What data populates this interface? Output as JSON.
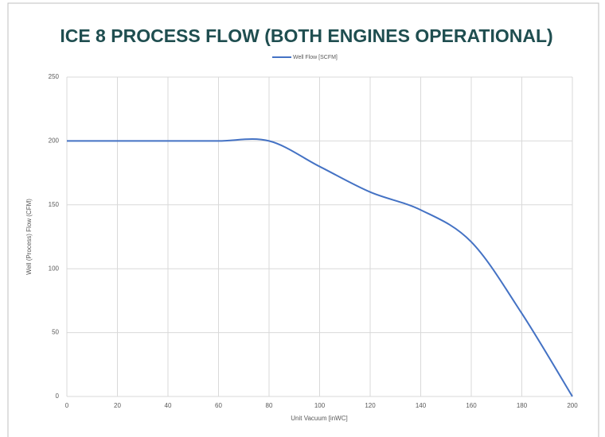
{
  "chart_data": {
    "type": "line",
    "title": "ICE 8 PROCESS FLOW (BOTH ENGINES OPERATIONAL)",
    "x_label": "Unit Vacuum [inWC]",
    "y_label": "Well (Process) Flow (CFM)",
    "x": [
      0,
      20,
      40,
      60,
      80,
      100,
      120,
      140,
      160,
      180,
      200
    ],
    "series": [
      {
        "name": "Well Flow [SCFM]",
        "color": "#4472c4",
        "values": [
          200,
          200,
          200,
          200,
          200,
          180,
          160,
          146,
          121,
          65,
          0
        ]
      }
    ],
    "xlim": [
      0,
      200
    ],
    "xticks": [
      0,
      20,
      40,
      60,
      80,
      100,
      120,
      140,
      160,
      180,
      200
    ],
    "ylim": [
      0,
      250
    ],
    "yticks": [
      0,
      50,
      100,
      150,
      200,
      250
    ],
    "grid": true,
    "legend": "top"
  }
}
